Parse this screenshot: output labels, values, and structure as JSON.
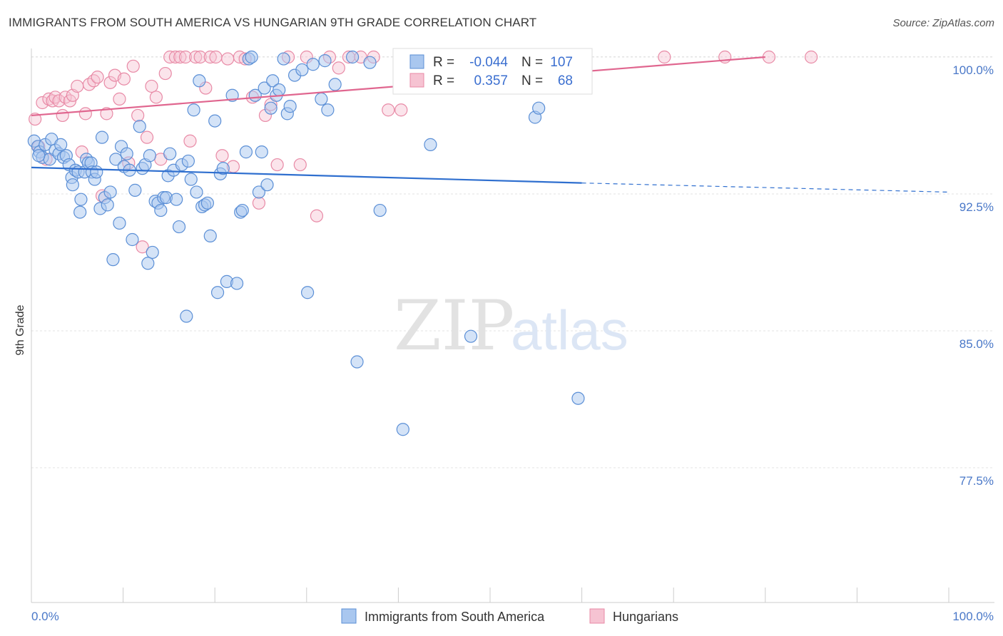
{
  "header": {
    "title": "IMMIGRANTS FROM SOUTH AMERICA VS HUNGARIAN 9TH GRADE CORRELATION CHART",
    "source": "Source: ZipAtlas.com"
  },
  "watermark": {
    "zip": "ZIP",
    "atlas": "atlas"
  },
  "colors": {
    "blue_fill": "#a9c7ef",
    "blue_stroke": "#5b8fd6",
    "blue_line": "#2f6fcf",
    "pink_fill": "#f6c3d2",
    "pink_stroke": "#e88aa6",
    "pink_line": "#e0668f",
    "grid": "#e3e3e3",
    "tick_text": "#4a78c8"
  },
  "stats": {
    "r_label": "R =",
    "n_label": "N =",
    "blue": {
      "r": "-0.044",
      "n": "107"
    },
    "pink": {
      "r": "0.357",
      "n": "68"
    }
  },
  "chart_data": {
    "type": "scatter",
    "xlabel": "",
    "ylabel": "9th Grade",
    "xlim": [
      0,
      100
    ],
    "ylim": [
      71.9,
      101.2
    ],
    "x_tick_labels": [
      {
        "value": 0,
        "label": "0.0%"
      },
      {
        "value": 100,
        "label": "100.0%"
      }
    ],
    "y_ticks": [
      {
        "value": 100.0,
        "label": "100.0%"
      },
      {
        "value": 92.5,
        "label": "92.5%"
      },
      {
        "value": 85.0,
        "label": "85.0%"
      },
      {
        "value": 77.5,
        "label": "77.5%"
      }
    ],
    "grid": true,
    "legend_position": "bottom-center",
    "series": [
      {
        "name": "Immigrants from South America",
        "color": "#a9c7ef",
        "trend": {
          "x": [
            0,
            60
          ],
          "y": [
            93.95,
            93.1
          ],
          "dashed_to_x": 100,
          "dashed_to_y": 92.6
        },
        "points": [
          [
            0.3,
            95.4
          ],
          [
            0.7,
            95.1
          ],
          [
            0.9,
            94.8
          ],
          [
            1.2,
            94.5
          ],
          [
            1.5,
            95.2
          ],
          [
            2.0,
            94.4
          ],
          [
            2.2,
            95.5
          ],
          [
            2.6,
            94.9
          ],
          [
            3.0,
            94.7
          ],
          [
            3.2,
            95.2
          ],
          [
            3.5,
            94.5
          ],
          [
            3.8,
            94.6
          ],
          [
            4.1,
            94.1
          ],
          [
            4.4,
            93.4
          ],
          [
            4.5,
            93.0
          ],
          [
            4.8,
            93.8
          ],
          [
            5.1,
            93.7
          ],
          [
            5.3,
            91.5
          ],
          [
            5.4,
            92.2
          ],
          [
            5.8,
            93.7
          ],
          [
            6.0,
            94.4
          ],
          [
            6.2,
            94.2
          ],
          [
            6.5,
            94.2
          ],
          [
            6.6,
            93.7
          ],
          [
            6.9,
            93.3
          ],
          [
            7.1,
            93.7
          ],
          [
            7.5,
            91.7
          ],
          [
            7.7,
            95.6
          ],
          [
            8.0,
            92.3
          ],
          [
            8.3,
            91.9
          ],
          [
            8.6,
            92.6
          ],
          [
            8.9,
            88.9
          ],
          [
            9.2,
            94.4
          ],
          [
            9.6,
            90.9
          ],
          [
            9.8,
            95.1
          ],
          [
            10.1,
            94.0
          ],
          [
            10.4,
            94.7
          ],
          [
            10.7,
            93.8
          ],
          [
            11.0,
            90.0
          ],
          [
            11.3,
            92.7
          ],
          [
            11.8,
            96.2
          ],
          [
            12.1,
            93.9
          ],
          [
            12.4,
            94.1
          ],
          [
            12.7,
            88.7
          ],
          [
            12.9,
            94.6
          ],
          [
            13.2,
            89.3
          ],
          [
            13.5,
            92.1
          ],
          [
            13.8,
            92.0
          ],
          [
            14.1,
            91.6
          ],
          [
            14.4,
            92.3
          ],
          [
            14.7,
            92.3
          ],
          [
            14.9,
            93.5
          ],
          [
            15.1,
            94.7
          ],
          [
            15.5,
            93.8
          ],
          [
            15.8,
            92.2
          ],
          [
            16.1,
            90.7
          ],
          [
            16.4,
            94.1
          ],
          [
            16.9,
            85.8
          ],
          [
            17.1,
            94.3
          ],
          [
            17.4,
            93.3
          ],
          [
            17.7,
            97.1
          ],
          [
            18.0,
            92.6
          ],
          [
            18.3,
            98.7
          ],
          [
            18.6,
            91.8
          ],
          [
            18.9,
            91.9
          ],
          [
            19.2,
            92.0
          ],
          [
            19.5,
            90.2
          ],
          [
            20.0,
            96.5
          ],
          [
            20.3,
            87.1
          ],
          [
            20.6,
            93.6
          ],
          [
            20.9,
            93.9
          ],
          [
            21.3,
            87.7
          ],
          [
            21.9,
            97.9
          ],
          [
            22.4,
            87.6
          ],
          [
            22.8,
            91.5
          ],
          [
            23.0,
            91.6
          ],
          [
            23.4,
            94.8
          ],
          [
            23.7,
            99.9
          ],
          [
            24.0,
            100.0
          ],
          [
            24.4,
            97.9
          ],
          [
            24.8,
            92.6
          ],
          [
            25.1,
            94.8
          ],
          [
            25.4,
            98.3
          ],
          [
            25.7,
            93.0
          ],
          [
            26.1,
            97.2
          ],
          [
            26.3,
            98.7
          ],
          [
            26.7,
            97.9
          ],
          [
            27.0,
            98.2
          ],
          [
            27.5,
            99.9
          ],
          [
            27.9,
            96.9
          ],
          [
            28.2,
            97.3
          ],
          [
            28.7,
            99.0
          ],
          [
            29.5,
            99.3
          ],
          [
            30.1,
            87.1
          ],
          [
            30.7,
            99.6
          ],
          [
            31.6,
            97.7
          ],
          [
            32.0,
            99.8
          ],
          [
            32.3,
            97.1
          ],
          [
            33.1,
            98.5
          ],
          [
            35.0,
            100.0
          ],
          [
            35.5,
            83.3
          ],
          [
            36.9,
            99.7
          ],
          [
            38.0,
            91.6
          ],
          [
            40.5,
            79.6
          ],
          [
            43.5,
            95.2
          ],
          [
            47.9,
            84.7
          ],
          [
            54.0,
            100.0
          ],
          [
            54.9,
            96.7
          ],
          [
            55.3,
            97.2
          ],
          [
            59.6,
            81.3
          ],
          [
            0.8,
            94.6
          ]
        ]
      },
      {
        "name": "Hungarians",
        "color": "#f6c3d2",
        "trend": {
          "x": [
            0,
            80
          ],
          "y": [
            96.8,
            100.0
          ]
        },
        "points": [
          [
            0.4,
            96.6
          ],
          [
            0.8,
            95.1
          ],
          [
            1.2,
            97.5
          ],
          [
            1.6,
            94.4
          ],
          [
            1.9,
            97.7
          ],
          [
            2.3,
            97.6
          ],
          [
            2.6,
            97.8
          ],
          [
            3.0,
            97.6
          ],
          [
            3.4,
            96.8
          ],
          [
            3.7,
            97.8
          ],
          [
            4.2,
            97.6
          ],
          [
            4.5,
            97.9
          ],
          [
            5.0,
            98.4
          ],
          [
            5.5,
            94.8
          ],
          [
            5.9,
            96.9
          ],
          [
            6.3,
            98.5
          ],
          [
            6.8,
            98.7
          ],
          [
            7.2,
            98.9
          ],
          [
            7.7,
            92.4
          ],
          [
            8.2,
            96.9
          ],
          [
            8.6,
            98.6
          ],
          [
            9.1,
            99.0
          ],
          [
            9.6,
            97.7
          ],
          [
            10.1,
            98.8
          ],
          [
            10.6,
            94.2
          ],
          [
            11.1,
            99.5
          ],
          [
            11.6,
            96.8
          ],
          [
            12.1,
            89.6
          ],
          [
            12.6,
            95.6
          ],
          [
            13.1,
            98.4
          ],
          [
            13.6,
            97.8
          ],
          [
            14.1,
            94.4
          ],
          [
            14.6,
            99.1
          ],
          [
            15.1,
            100.0
          ],
          [
            15.7,
            100.0
          ],
          [
            16.2,
            100.0
          ],
          [
            16.8,
            100.0
          ],
          [
            17.3,
            95.4
          ],
          [
            17.9,
            100.0
          ],
          [
            18.4,
            100.0
          ],
          [
            19.0,
            98.3
          ],
          [
            19.5,
            100.0
          ],
          [
            20.1,
            100.0
          ],
          [
            20.8,
            94.6
          ],
          [
            21.4,
            99.9
          ],
          [
            22.0,
            94.0
          ],
          [
            22.7,
            100.0
          ],
          [
            23.3,
            99.9
          ],
          [
            24.1,
            97.8
          ],
          [
            24.8,
            92.0
          ],
          [
            25.5,
            96.8
          ],
          [
            26.1,
            97.4
          ],
          [
            26.8,
            94.1
          ],
          [
            28.0,
            100.0
          ],
          [
            29.3,
            94.1
          ],
          [
            30.0,
            100.0
          ],
          [
            31.1,
            91.3
          ],
          [
            32.5,
            100.0
          ],
          [
            33.5,
            99.4
          ],
          [
            34.6,
            100.0
          ],
          [
            35.9,
            100.0
          ],
          [
            37.3,
            100.0
          ],
          [
            38.9,
            97.1
          ],
          [
            40.3,
            97.1
          ],
          [
            69.0,
            100.0
          ],
          [
            75.6,
            100.0
          ],
          [
            80.4,
            100.0
          ],
          [
            85.0,
            100.0
          ]
        ]
      }
    ]
  }
}
